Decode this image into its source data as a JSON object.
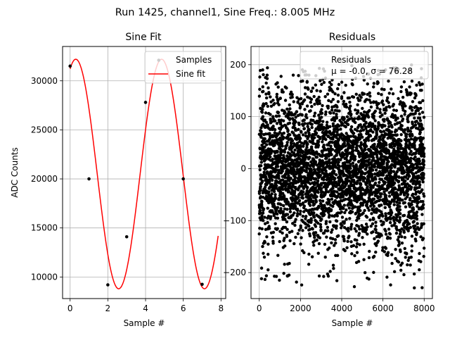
{
  "suptitle": "Run 1425, channel1, Sine Freq.: 8.005 MHz",
  "chart_data": [
    {
      "type": "scatter",
      "title": "Sine Fit",
      "xlabel": "Sample #",
      "ylabel": "ADC Counts",
      "xlim": [
        -0.4,
        8.25
      ],
      "ylim": [
        7800,
        33500
      ],
      "xticks": [
        0,
        2,
        4,
        6,
        8
      ],
      "yticks": [
        10000,
        15000,
        20000,
        25000,
        30000
      ],
      "grid": true,
      "legend": {
        "position": "top-right",
        "entries": [
          "Samples",
          "Sine fit"
        ]
      },
      "samples": {
        "name": "Samples",
        "color": "#000000",
        "x": [
          0,
          1,
          2,
          3,
          4,
          4.7,
          6,
          7
        ],
        "y": [
          31500,
          20000,
          9200,
          14100,
          27800,
          32100,
          20000,
          9250
        ]
      },
      "fit": {
        "name": "Sine fit",
        "color": "#ff0000",
        "amplitude": 11700,
        "offset": 20500,
        "period": 4.55,
        "phase_x": 0.3,
        "x_range": [
          0,
          7.85
        ]
      }
    },
    {
      "type": "scatter",
      "title": "Residuals",
      "xlabel": "Sample #",
      "ylabel": "",
      "xlim": [
        -400,
        8400
      ],
      "ylim": [
        -250,
        235
      ],
      "xticks": [
        0,
        2000,
        4000,
        6000,
        8000
      ],
      "yticks": [
        -200,
        -100,
        0,
        100,
        200
      ],
      "grid": true,
      "legend": {
        "position": "top-right",
        "entries": [
          "Residuals",
          "μ = -0.0, σ = 76.28"
        ]
      },
      "residuals": {
        "name": "Residuals",
        "mean": -0.0,
        "sigma": 76.28,
        "count": 8000,
        "color": "#000000"
      }
    }
  ]
}
